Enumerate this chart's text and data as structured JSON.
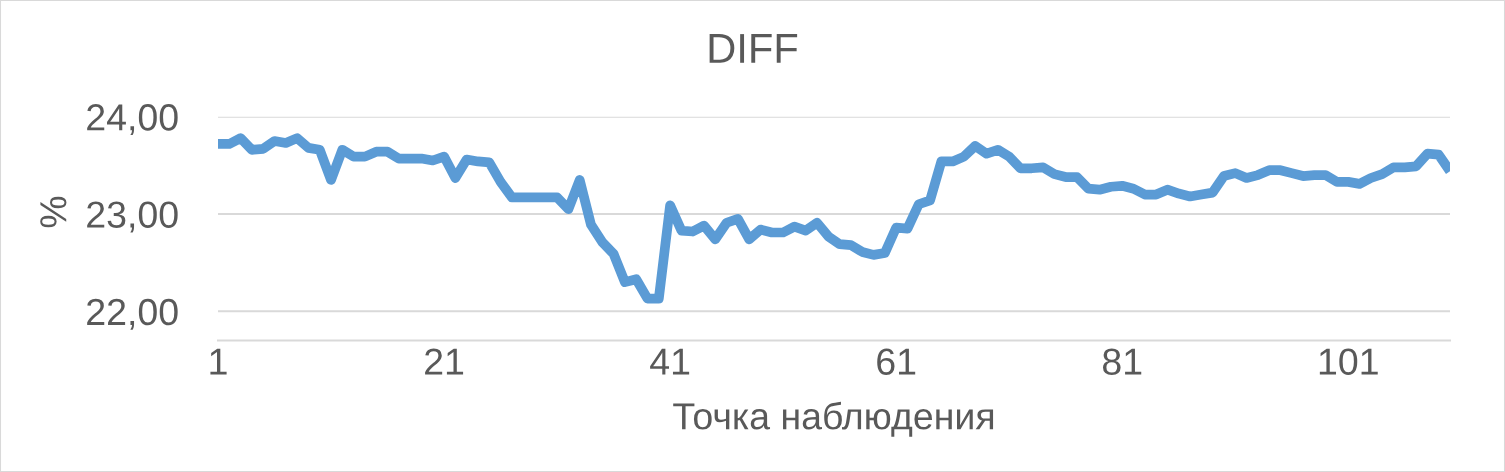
{
  "chart_data": {
    "type": "line",
    "title": "DIFF",
    "xlabel": "Точка наблюдения",
    "ylabel": "%",
    "categories": [
      "1",
      null,
      null,
      null,
      null,
      null,
      null,
      null,
      null,
      null,
      null,
      null,
      null,
      null,
      null,
      null,
      null,
      null,
      null,
      null,
      "21",
      null,
      null,
      null,
      null,
      null,
      null,
      null,
      null,
      null,
      null,
      null,
      null,
      null,
      null,
      null,
      null,
      null,
      null,
      null,
      "41",
      null,
      null,
      null,
      null,
      null,
      null,
      null,
      null,
      null,
      null,
      null,
      null,
      null,
      null,
      null,
      null,
      null,
      null,
      null,
      "61",
      null,
      null,
      null,
      null,
      null,
      null,
      null,
      null,
      null,
      null,
      null,
      null,
      null,
      null,
      null,
      null,
      null,
      null,
      null,
      "81",
      null,
      null,
      null,
      null,
      null,
      null,
      null,
      null,
      null,
      null,
      null,
      null,
      null,
      null,
      null,
      null,
      null,
      null,
      null,
      "101",
      null,
      null,
      null,
      null,
      null,
      null,
      null,
      null,
      null
    ],
    "series": [
      {
        "color": "#5b9bd5",
        "values": [
          23.72,
          23.72,
          23.78,
          23.66,
          23.67,
          23.75,
          23.73,
          23.78,
          23.68,
          23.66,
          23.35,
          23.66,
          23.59,
          23.59,
          23.64,
          23.64,
          23.57,
          23.57,
          23.57,
          23.55,
          23.59,
          23.37,
          23.56,
          23.54,
          23.53,
          23.33,
          23.17,
          23.17,
          23.17,
          23.17,
          23.17,
          23.05,
          23.35,
          22.89,
          22.71,
          22.59,
          22.3,
          22.33,
          22.13,
          22.13,
          23.09,
          22.83,
          22.82,
          22.88,
          22.74,
          22.91,
          22.95,
          22.74,
          22.84,
          22.81,
          22.81,
          22.87,
          22.83,
          22.91,
          22.77,
          22.69,
          22.68,
          22.61,
          22.58,
          22.6,
          22.86,
          22.85,
          23.1,
          23.14,
          23.54,
          23.54,
          23.59,
          23.7,
          23.62,
          23.66,
          23.59,
          23.47,
          23.47,
          23.48,
          23.41,
          23.38,
          23.38,
          23.26,
          23.25,
          23.28,
          23.29,
          23.26,
          23.2,
          23.2,
          23.25,
          23.21,
          23.18,
          23.2,
          23.22,
          23.39,
          23.42,
          23.37,
          23.4,
          23.45,
          23.45,
          23.42,
          23.39,
          23.4,
          23.4,
          23.33,
          23.33,
          23.31,
          23.37,
          23.41,
          23.48,
          23.48,
          23.49,
          23.62,
          23.61,
          23.44
        ]
      }
    ],
    "ylim": [
      21.7,
      24.0
    ],
    "yticks": [
      {
        "value": 22,
        "label": "22,00"
      },
      {
        "value": 23,
        "label": "23,00"
      },
      {
        "value": 24,
        "label": "24,00"
      }
    ],
    "grid": "y",
    "marker": "none",
    "line_style": "solid"
  }
}
